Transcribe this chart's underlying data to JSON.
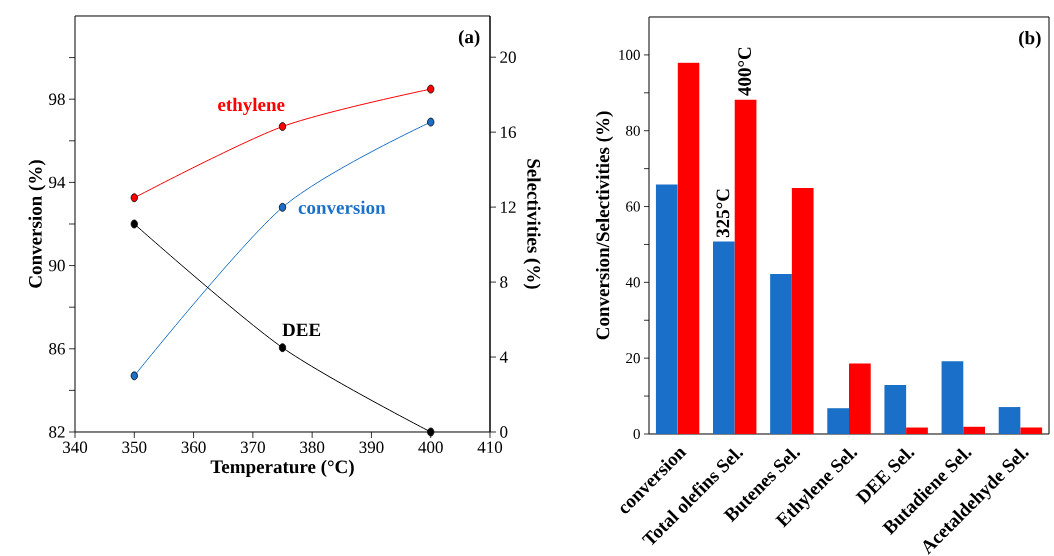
{
  "chart_data": [
    {
      "type": "line",
      "xlabel": "Temperature (°C)",
      "ylabel": "Conversion (%)",
      "y2label": "Selectivities (%)",
      "annotations": [
        "(a)"
      ],
      "x": [
        350,
        375,
        400
      ],
      "xlim": [
        340,
        410
      ],
      "xticks": [
        340,
        350,
        360,
        370,
        380,
        390,
        400,
        410
      ],
      "ylim": [
        82,
        102
      ],
      "yticks": [
        82,
        {
          "value": 84,
          "label": null
        },
        86,
        {
          "value": 88,
          "label": null
        },
        90,
        {
          "value": 92,
          "label": null
        },
        94,
        {
          "value": 96,
          "label": null
        },
        98,
        {
          "value": 100,
          "label": null
        }
      ],
      "y2lim": [
        0,
        22.2
      ],
      "y2ticks": [
        0,
        4,
        8,
        12,
        16,
        20
      ],
      "marker": "circle",
      "series": [
        {
          "name": "conversion",
          "color": "#1a70c8",
          "values": [
            84.7,
            92.8,
            96.9
          ]
        },
        {
          "name": "ethylene",
          "color": "#ff0000",
          "axis": "y2",
          "values": [
            12.5,
            16.3,
            18.3
          ]
        },
        {
          "name": "DEE",
          "color": "#000000",
          "axis": "y2",
          "values": [
            11.1,
            4.5,
            0.0
          ]
        }
      ]
    },
    {
      "type": "bar",
      "ylabel": "Conversion/Selectivities (%)",
      "annotations": [
        "(b)"
      ],
      "categories": [
        "conversion",
        "Total olefins Sel.",
        "Butenes Sel.",
        "Ethylene Sel.",
        "DEE Sel.",
        "Butadiene Sel.",
        "Acetaldehyde Sel."
      ],
      "ylim": [
        0,
        110
      ],
      "yticks": [
        0,
        {
          "value": 10,
          "label": null
        },
        20,
        {
          "value": 30,
          "label": null
        },
        40,
        {
          "value": 50,
          "label": null
        },
        60,
        {
          "value": 70,
          "label": null
        },
        80,
        {
          "value": 90,
          "label": null
        },
        100
      ],
      "series": [
        {
          "name": "325°C",
          "color": "#1a70c8",
          "values": [
            65.8,
            50.8,
            42.2,
            6.8,
            12.9,
            19.2,
            7.1
          ]
        },
        {
          "name": "400°C",
          "color": "#ff0000",
          "values": [
            97.9,
            88.2,
            64.9,
            18.6,
            1.7,
            1.9,
            1.7
          ]
        }
      ]
    }
  ]
}
